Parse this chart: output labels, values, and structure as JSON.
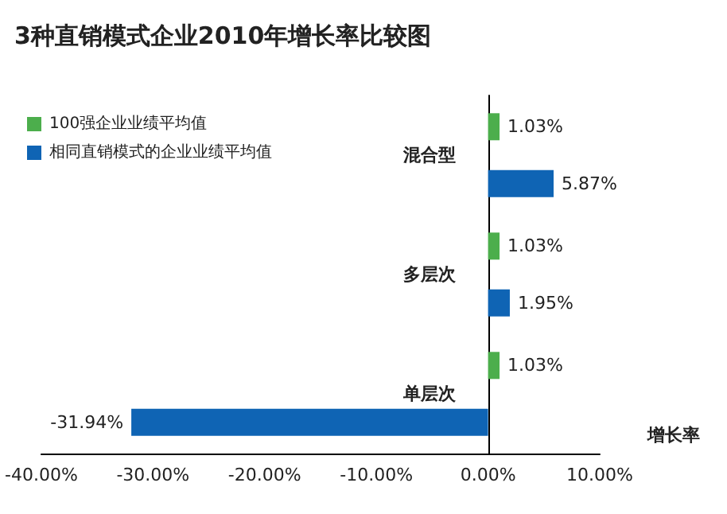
{
  "chart_data": {
    "type": "bar",
    "orientation": "horizontal",
    "title": "3种直销模式企业2010年增长率比较图",
    "xlabel": "增长率",
    "categories": [
      "混合型",
      "多层次",
      "单层次"
    ],
    "series": [
      {
        "name": "100强企业业绩平均值",
        "color": "#4cae4c",
        "values": [
          1.03,
          1.03,
          1.03
        ],
        "value_labels": [
          "1.03%",
          "1.03%",
          "1.03%"
        ]
      },
      {
        "name": "相同直销模式的企业业绩平均值",
        "color": "#0f64b4",
        "values": [
          5.87,
          1.95,
          -31.94
        ],
        "value_labels": [
          "5.87%",
          "1.95%",
          "-31.94%"
        ]
      }
    ],
    "xlim": [
      -40,
      10
    ],
    "xticks": [
      {
        "value": -40,
        "label": "-40.00%"
      },
      {
        "value": -30,
        "label": "-30.00%"
      },
      {
        "value": -20,
        "label": "-20.00%"
      },
      {
        "value": -10,
        "label": "-10.00%"
      },
      {
        "value": 0,
        "label": "0.00%"
      },
      {
        "value": 10,
        "label": "10.00%"
      }
    ],
    "legend": "top left",
    "grid": false
  }
}
